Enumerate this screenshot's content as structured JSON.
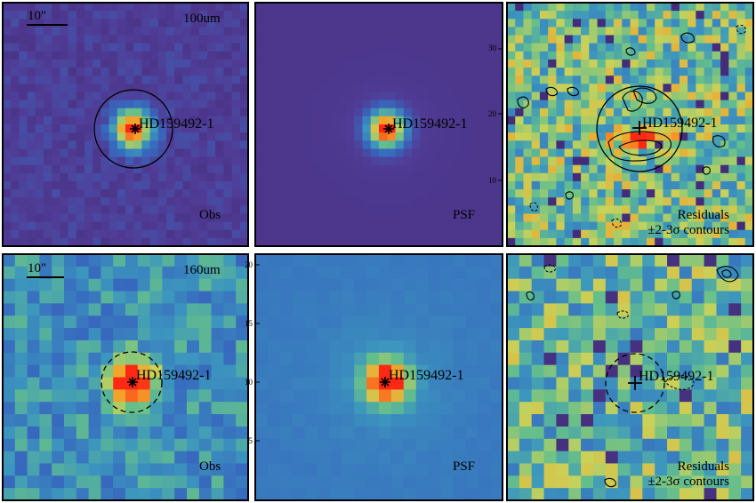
{
  "figure": {
    "source_label": "HD159492-1",
    "scale_bar_label": "10\"",
    "contour_note": "±2-3σ contours",
    "colors": {
      "background": "#ffffff",
      "frame": "#000000",
      "source_core": "#e8402a",
      "colormap_low": "#46307a",
      "colormap_high": "#ff2a14"
    },
    "rows": [
      {
        "band": "100um",
        "panels": [
          {
            "name": "obs",
            "corner_label": "Obs",
            "show_band": true,
            "show_scalebar": true,
            "aperture": "solid",
            "marker": "star"
          },
          {
            "name": "psf",
            "corner_label": "PSF",
            "show_band": false,
            "show_scalebar": false,
            "aperture": "none",
            "marker": "star"
          },
          {
            "name": "residuals",
            "corner_label": "Residuals",
            "show_band": false,
            "show_scalebar": false,
            "aperture": "solid",
            "marker": "plus",
            "contours": true
          }
        ]
      },
      {
        "band": "160um",
        "panels": [
          {
            "name": "obs",
            "corner_label": "Obs",
            "show_band": true,
            "show_scalebar": true,
            "aperture": "dashed",
            "marker": "star"
          },
          {
            "name": "psf",
            "corner_label": "PSF",
            "show_band": false,
            "show_scalebar": false,
            "aperture": "none",
            "marker": "star"
          },
          {
            "name": "residuals",
            "corner_label": "Residuals",
            "show_band": false,
            "show_scalebar": false,
            "aperture": "dashed",
            "marker": "plus",
            "contours": true
          }
        ]
      }
    ],
    "axis_ticks": {
      "row1_psf_right": [
        "30",
        "20",
        "10"
      ],
      "row2_psf_left": [
        "20",
        "15",
        "10",
        "5"
      ]
    }
  }
}
